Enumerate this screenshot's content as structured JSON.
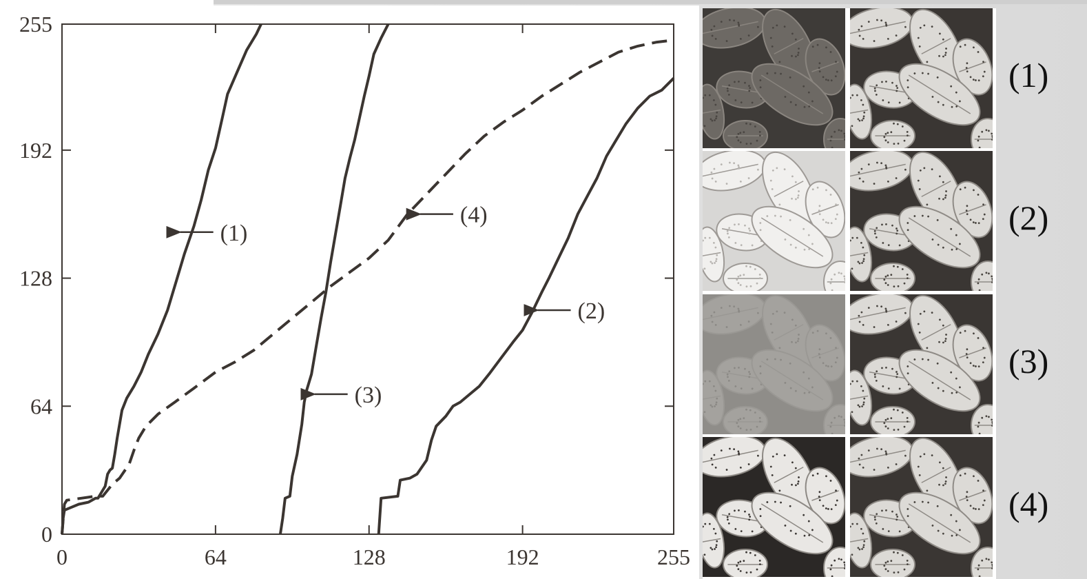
{
  "chart_data": {
    "type": "line",
    "title": "",
    "xlabel": "",
    "ylabel": "",
    "xlim": [
      0,
      255
    ],
    "ylim": [
      0,
      255
    ],
    "x_ticks": [
      "0",
      "64",
      "128",
      "192",
      "255"
    ],
    "y_ticks": [
      "0",
      "64",
      "128",
      "192",
      "255"
    ],
    "grid": false,
    "series": [
      {
        "name": "(1)",
        "style": "solid",
        "points": [
          [
            0,
            0
          ],
          [
            0.5,
            8
          ],
          [
            1,
            12
          ],
          [
            3,
            13
          ],
          [
            7,
            15
          ],
          [
            11,
            16
          ],
          [
            14,
            18
          ],
          [
            15,
            18
          ],
          [
            16,
            20
          ],
          [
            18,
            24
          ],
          [
            19,
            30
          ],
          [
            20,
            32
          ],
          [
            21,
            33
          ],
          [
            22,
            40
          ],
          [
            23,
            48
          ],
          [
            24,
            55
          ],
          [
            25,
            62
          ],
          [
            27,
            68
          ],
          [
            30,
            74
          ],
          [
            33,
            81
          ],
          [
            36,
            90
          ],
          [
            40,
            100
          ],
          [
            44,
            112
          ],
          [
            48,
            128
          ],
          [
            51,
            140
          ],
          [
            55,
            154
          ],
          [
            58,
            167
          ],
          [
            61,
            182
          ],
          [
            64,
            193
          ],
          [
            67,
            209
          ],
          [
            69,
            220
          ],
          [
            73,
            231
          ],
          [
            77,
            242
          ],
          [
            81,
            250
          ],
          [
            83,
            255
          ]
        ]
      },
      {
        "name": "(2)",
        "style": "solid",
        "points": [
          [
            132,
            0
          ],
          [
            133,
            18
          ],
          [
            140,
            19
          ],
          [
            141,
            27
          ],
          [
            145,
            28
          ],
          [
            148,
            30
          ],
          [
            152,
            37
          ],
          [
            154,
            47
          ],
          [
            156,
            54
          ],
          [
            160,
            59
          ],
          [
            163,
            64
          ],
          [
            166,
            66
          ],
          [
            170,
            70
          ],
          [
            174,
            74
          ],
          [
            178,
            80
          ],
          [
            183,
            88
          ],
          [
            188,
            96
          ],
          [
            192,
            102
          ],
          [
            196,
            111
          ],
          [
            200,
            121
          ],
          [
            203,
            128
          ],
          [
            207,
            138
          ],
          [
            211,
            148
          ],
          [
            215,
            160
          ],
          [
            219,
            169
          ],
          [
            223,
            178
          ],
          [
            227,
            189
          ],
          [
            231,
            197
          ],
          [
            235,
            205
          ],
          [
            240,
            213
          ],
          [
            245,
            219
          ],
          [
            250,
            222
          ],
          [
            255,
            228
          ]
        ]
      },
      {
        "name": "(3)",
        "style": "solid",
        "points": [
          [
            91,
            0
          ],
          [
            92,
            8
          ],
          [
            93,
            18
          ],
          [
            95,
            19
          ],
          [
            96,
            29
          ],
          [
            98,
            40
          ],
          [
            100,
            55
          ],
          [
            101,
            66
          ],
          [
            102,
            72
          ],
          [
            104,
            80
          ],
          [
            106,
            94
          ],
          [
            108,
            108
          ],
          [
            110,
            121
          ],
          [
            112,
            136
          ],
          [
            114,
            150
          ],
          [
            116,
            164
          ],
          [
            118,
            178
          ],
          [
            120,
            188
          ],
          [
            122,
            197
          ],
          [
            124,
            208
          ],
          [
            126,
            219
          ],
          [
            128,
            229
          ],
          [
            130,
            240
          ],
          [
            133,
            248
          ],
          [
            136,
            255
          ]
        ]
      },
      {
        "name": "(4)",
        "style": "dashed",
        "points": [
          [
            0,
            0
          ],
          [
            1,
            15
          ],
          [
            2,
            17
          ],
          [
            8,
            18
          ],
          [
            14,
            19
          ],
          [
            17,
            19
          ],
          [
            21,
            25
          ],
          [
            24,
            28
          ],
          [
            28,
            35
          ],
          [
            30,
            42
          ],
          [
            32,
            48
          ],
          [
            35,
            54
          ],
          [
            40,
            60
          ],
          [
            47,
            66
          ],
          [
            55,
            73
          ],
          [
            64,
            81
          ],
          [
            72,
            86
          ],
          [
            80,
            92
          ],
          [
            88,
            100
          ],
          [
            96,
            108
          ],
          [
            104,
            116
          ],
          [
            112,
            124
          ],
          [
            120,
            131
          ],
          [
            128,
            138
          ],
          [
            136,
            147
          ],
          [
            144,
            160
          ],
          [
            152,
            170
          ],
          [
            160,
            180
          ],
          [
            168,
            190
          ],
          [
            176,
            199
          ],
          [
            184,
            206
          ],
          [
            192,
            212
          ],
          [
            200,
            219
          ],
          [
            208,
            225
          ],
          [
            216,
            231
          ],
          [
            224,
            236
          ],
          [
            232,
            241
          ],
          [
            240,
            244
          ],
          [
            248,
            246
          ],
          [
            255,
            247
          ]
        ]
      }
    ],
    "annotations": [
      {
        "text": "(1)",
        "point": [
          47,
          151
        ]
      },
      {
        "text": "(4)",
        "point": [
          147,
          160
        ]
      },
      {
        "text": "(2)",
        "point": [
          196,
          112
        ]
      },
      {
        "text": "(3)",
        "point": [
          103,
          70
        ]
      }
    ]
  },
  "thumbnails": {
    "rows": [
      {
        "label": "(1)",
        "left_variant": "dark",
        "right_variant": "equalized"
      },
      {
        "label": "(2)",
        "left_variant": "light",
        "right_variant": "equalized"
      },
      {
        "label": "(3)",
        "left_variant": "low-contrast",
        "right_variant": "equalized"
      },
      {
        "label": "(4)",
        "left_variant": "high-contrast",
        "right_variant": "equalized"
      }
    ]
  },
  "colors": {
    "ink": "#3b3531",
    "page": "#ffffff",
    "panel_backdrop": "#dedede"
  }
}
